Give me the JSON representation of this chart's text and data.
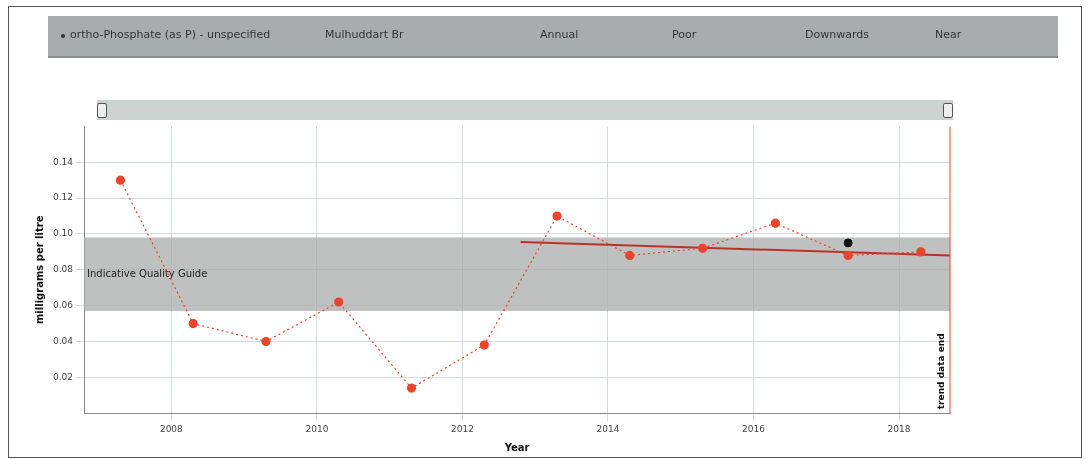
{
  "chart_data": {
    "type": "line",
    "annotations": [
      "ortho-Phosphate (as P) - unspecified",
      "Mulhuddart Br",
      "Annual",
      "Poor",
      "Downwards",
      "Near"
    ],
    "xlabel": "Year",
    "ylabel": "milligrams per litre",
    "x": [
      2007.3,
      2008.3,
      2009.3,
      2010.3,
      2011.3,
      2012.3,
      2013.3,
      2014.3,
      2015.3,
      2016.3,
      2017.3,
      2018.3
    ],
    "series": [
      {
        "color": "#e8452c",
        "line_style": "dotted",
        "marker": "circle",
        "values": [
          0.13,
          0.05,
          0.04,
          0.062,
          0.014,
          0.038,
          0.11,
          0.088,
          0.092,
          0.106,
          0.088,
          0.09
        ]
      },
      {
        "type": "scatter",
        "color": "#111111",
        "marker": "circle",
        "x": [
          2017.3
        ],
        "values": [
          0.095
        ]
      },
      {
        "type": "line",
        "color": "#b8322a",
        "line_style": "solid",
        "marker": "none",
        "x": [
          2012.8,
          2018.7
        ],
        "values": [
          0.0955,
          0.088
        ]
      }
    ],
    "xlim": [
      2006.8,
      2018.7
    ],
    "xticks": [
      2008,
      2010,
      2012,
      2014,
      2016,
      2018
    ],
    "ylim": [
      0,
      0.16
    ],
    "yticks": [
      0.02,
      0.04,
      0.06,
      0.08,
      {
        "value": 0.1,
        "label": "0.10"
      },
      0.12,
      0.14
    ],
    "bands": [
      {
        "axis": "y",
        "from": 0.057,
        "to": 0.098,
        "label": "Indicative Quality Guide",
        "color": "#a9abab"
      }
    ],
    "ref_lines": [
      {
        "axis": "x",
        "value": 2018.7,
        "label": "trend data end",
        "color": "#e8452c"
      }
    ],
    "grid": true,
    "legend": false
  }
}
